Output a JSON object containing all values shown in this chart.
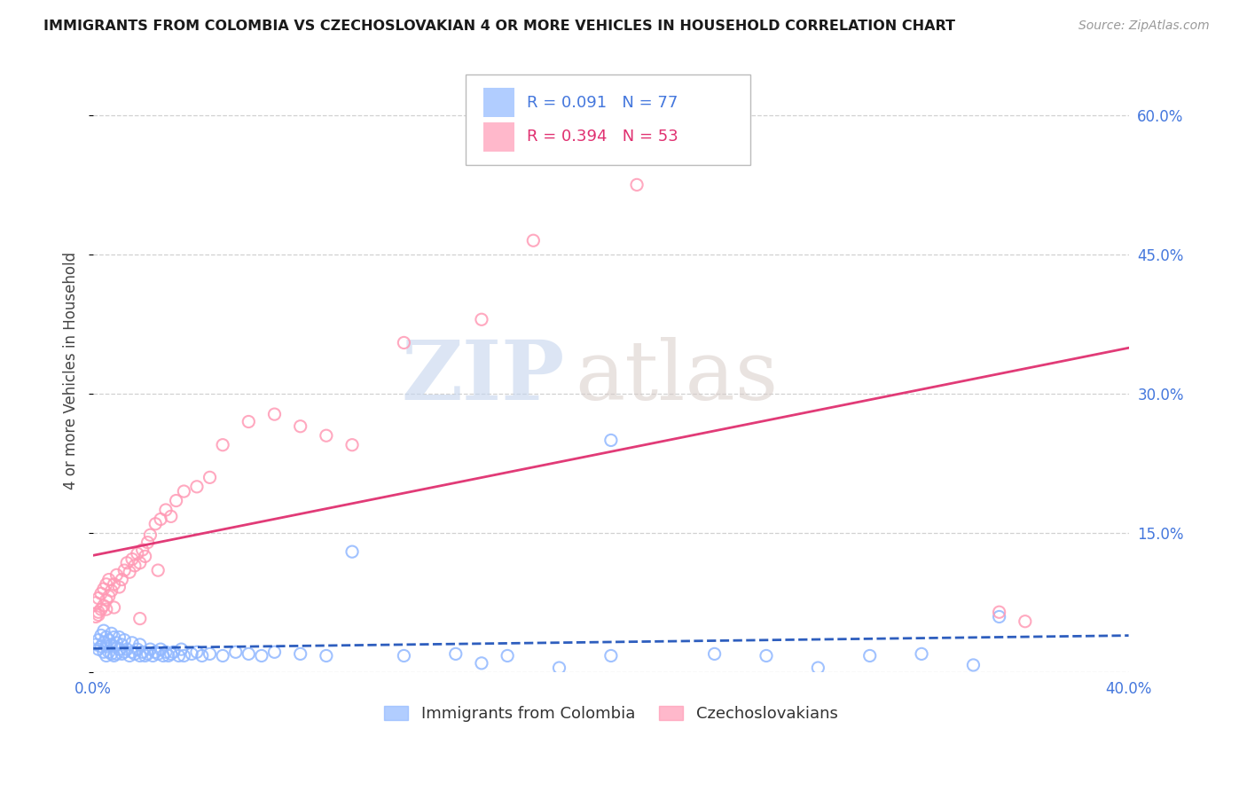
{
  "title": "IMMIGRANTS FROM COLOMBIA VS CZECHOSLOVAKIAN 4 OR MORE VEHICLES IN HOUSEHOLD CORRELATION CHART",
  "source": "Source: ZipAtlas.com",
  "ylabel": "4 or more Vehicles in Household",
  "xmin": 0.0,
  "xmax": 0.4,
  "ymin": 0.0,
  "ymax": 0.65,
  "yticks": [
    0.0,
    0.15,
    0.3,
    0.45,
    0.6
  ],
  "xticks": [
    0.0,
    0.1,
    0.2,
    0.3,
    0.4
  ],
  "colombia_color": "#91b8ff",
  "czechoslovakia_color": "#ff9ab5",
  "colombia_line_color": "#2255bb",
  "czechoslovakia_line_color": "#e03070",
  "R_colombia": 0.091,
  "N_colombia": 77,
  "R_czechoslovakia": 0.394,
  "N_czechoslovakia": 53,
  "legend_label_1": "Immigrants from Colombia",
  "legend_label_2": "Czechoslovakians",
  "colombia_x": [
    0.001,
    0.002,
    0.002,
    0.003,
    0.003,
    0.004,
    0.004,
    0.004,
    0.005,
    0.005,
    0.005,
    0.006,
    0.006,
    0.007,
    0.007,
    0.007,
    0.008,
    0.008,
    0.008,
    0.009,
    0.009,
    0.01,
    0.01,
    0.011,
    0.011,
    0.012,
    0.012,
    0.013,
    0.014,
    0.015,
    0.015,
    0.016,
    0.017,
    0.018,
    0.018,
    0.019,
    0.02,
    0.021,
    0.022,
    0.023,
    0.024,
    0.025,
    0.026,
    0.027,
    0.028,
    0.029,
    0.03,
    0.031,
    0.033,
    0.034,
    0.035,
    0.038,
    0.04,
    0.042,
    0.045,
    0.05,
    0.055,
    0.06,
    0.065,
    0.07,
    0.08,
    0.09,
    0.1,
    0.12,
    0.14,
    0.16,
    0.2,
    0.24,
    0.26,
    0.3,
    0.32,
    0.34,
    0.35,
    0.2,
    0.15,
    0.18,
    0.28
  ],
  "colombia_y": [
    0.03,
    0.025,
    0.035,
    0.028,
    0.04,
    0.022,
    0.032,
    0.045,
    0.018,
    0.028,
    0.038,
    0.022,
    0.035,
    0.02,
    0.03,
    0.042,
    0.018,
    0.028,
    0.038,
    0.02,
    0.032,
    0.025,
    0.038,
    0.02,
    0.03,
    0.022,
    0.035,
    0.025,
    0.018,
    0.022,
    0.032,
    0.02,
    0.025,
    0.018,
    0.03,
    0.022,
    0.018,
    0.02,
    0.025,
    0.018,
    0.022,
    0.02,
    0.025,
    0.018,
    0.022,
    0.018,
    0.02,
    0.022,
    0.018,
    0.025,
    0.018,
    0.02,
    0.022,
    0.018,
    0.02,
    0.018,
    0.022,
    0.02,
    0.018,
    0.022,
    0.02,
    0.018,
    0.13,
    0.018,
    0.02,
    0.018,
    0.018,
    0.02,
    0.018,
    0.018,
    0.02,
    0.008,
    0.06,
    0.25,
    0.01,
    0.005,
    0.005
  ],
  "czechoslovakia_x": [
    0.001,
    0.001,
    0.002,
    0.002,
    0.003,
    0.003,
    0.004,
    0.004,
    0.005,
    0.005,
    0.006,
    0.006,
    0.007,
    0.008,
    0.008,
    0.009,
    0.01,
    0.011,
    0.012,
    0.013,
    0.014,
    0.015,
    0.016,
    0.017,
    0.018,
    0.019,
    0.02,
    0.021,
    0.022,
    0.024,
    0.026,
    0.028,
    0.03,
    0.032,
    0.035,
    0.04,
    0.045,
    0.05,
    0.06,
    0.07,
    0.08,
    0.09,
    0.1,
    0.12,
    0.15,
    0.17,
    0.21,
    0.35,
    0.002,
    0.005,
    0.018,
    0.025,
    0.36
  ],
  "czechoslovakia_y": [
    0.06,
    0.075,
    0.065,
    0.08,
    0.068,
    0.085,
    0.072,
    0.09,
    0.078,
    0.095,
    0.082,
    0.1,
    0.088,
    0.07,
    0.095,
    0.105,
    0.092,
    0.1,
    0.11,
    0.118,
    0.108,
    0.122,
    0.115,
    0.128,
    0.118,
    0.132,
    0.125,
    0.14,
    0.148,
    0.16,
    0.165,
    0.175,
    0.168,
    0.185,
    0.195,
    0.2,
    0.21,
    0.245,
    0.27,
    0.278,
    0.265,
    0.255,
    0.245,
    0.355,
    0.38,
    0.465,
    0.525,
    0.065,
    0.062,
    0.068,
    0.058,
    0.11,
    0.055
  ],
  "title_color": "#1a1a1a",
  "axis_tick_color": "#4477dd",
  "grid_color": "#cccccc",
  "background_color": "#ffffff",
  "watermark_zip_color": "#c5d5ee",
  "watermark_atlas_color": "#d8ccc8",
  "title_fontsize": 11.5,
  "source_fontsize": 10,
  "tick_fontsize": 12,
  "ylabel_fontsize": 12,
  "legend_fontsize": 13
}
